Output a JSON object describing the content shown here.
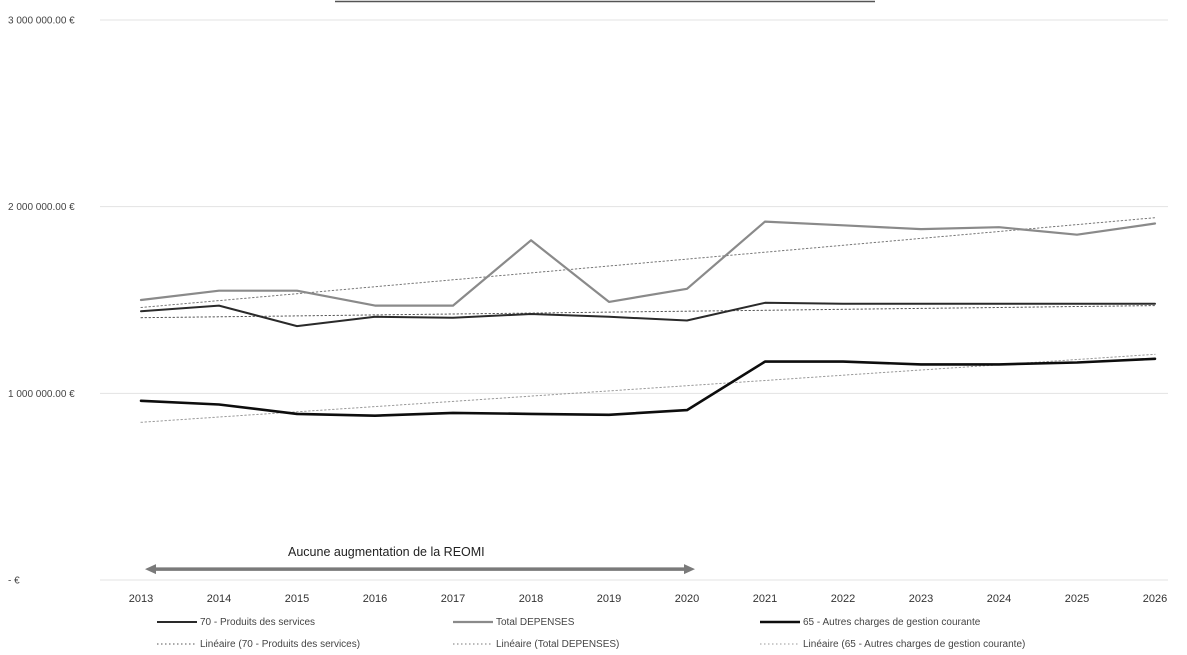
{
  "chart_data": {
    "type": "line",
    "title": "",
    "xlabel": "",
    "ylabel": "",
    "categories": [
      "2013",
      "2014",
      "2015",
      "2016",
      "2017",
      "2018",
      "2019",
      "2020",
      "2021",
      "2022",
      "2023",
      "2024",
      "2025",
      "2026"
    ],
    "y_ticks": [
      {
        "value": 3000000,
        "label": "3 000 000.00 €"
      },
      {
        "value": 2000000,
        "label": "2 000 000.00 €"
      },
      {
        "value": 1000000,
        "label": "1 000 000.00 €"
      },
      {
        "value": 0,
        "label": "-   €"
      }
    ],
    "ylim": [
      0,
      3000000
    ],
    "grid": true,
    "legend_position": "bottom",
    "series": [
      {
        "name": "70 - Produits des services",
        "color": "#2a2a2a",
        "style": "solid",
        "values": [
          1440000,
          1470000,
          1360000,
          1410000,
          1405000,
          1425000,
          1410000,
          1390000,
          1485000,
          1480000,
          1480000,
          1480000,
          1480000,
          1480000
        ]
      },
      {
        "name": "Total DEPENSES",
        "color": "#8a8a8a",
        "style": "solid",
        "values": [
          1500000,
          1550000,
          1550000,
          1470000,
          1470000,
          1820000,
          1490000,
          1560000,
          1920000,
          1900000,
          1880000,
          1890000,
          1850000,
          1910000
        ]
      },
      {
        "name": "65 - Autres charges de gestion courante",
        "color": "#0d0d0d",
        "style": "solid",
        "values": [
          960000,
          940000,
          890000,
          880000,
          895000,
          890000,
          885000,
          910000,
          1170000,
          1170000,
          1155000,
          1155000,
          1165000,
          1185000
        ]
      },
      {
        "name": "Linéaire (70 - Produits des services)",
        "color": "#555555",
        "style": "dotted",
        "values": [
          1405000,
          1410000,
          1415000,
          1420000,
          1425000,
          1430000,
          1435000,
          1440000,
          1445000,
          1450000,
          1455000,
          1460000,
          1465000,
          1470000
        ]
      },
      {
        "name": "Linéaire (Total DEPENSES)",
        "color": "#777777",
        "style": "dotted",
        "values": [
          1460000,
          1497000,
          1534000,
          1571000,
          1608000,
          1645000,
          1682000,
          1719000,
          1756000,
          1793000,
          1830000,
          1867000,
          1904000,
          1941000
        ]
      },
      {
        "name": "Linéaire (65 - Autres charges de gestion courante)",
        "color": "#999999",
        "style": "dotted",
        "values": [
          845000,
          873000,
          901000,
          929000,
          957000,
          985000,
          1013000,
          1041000,
          1069000,
          1097000,
          1125000,
          1153000,
          1181000,
          1209000
        ]
      }
    ],
    "annotations": [
      {
        "text": "Aucune augmentation de la REOMI",
        "from": "2013",
        "to": "2020",
        "y_value": 85000
      }
    ]
  }
}
